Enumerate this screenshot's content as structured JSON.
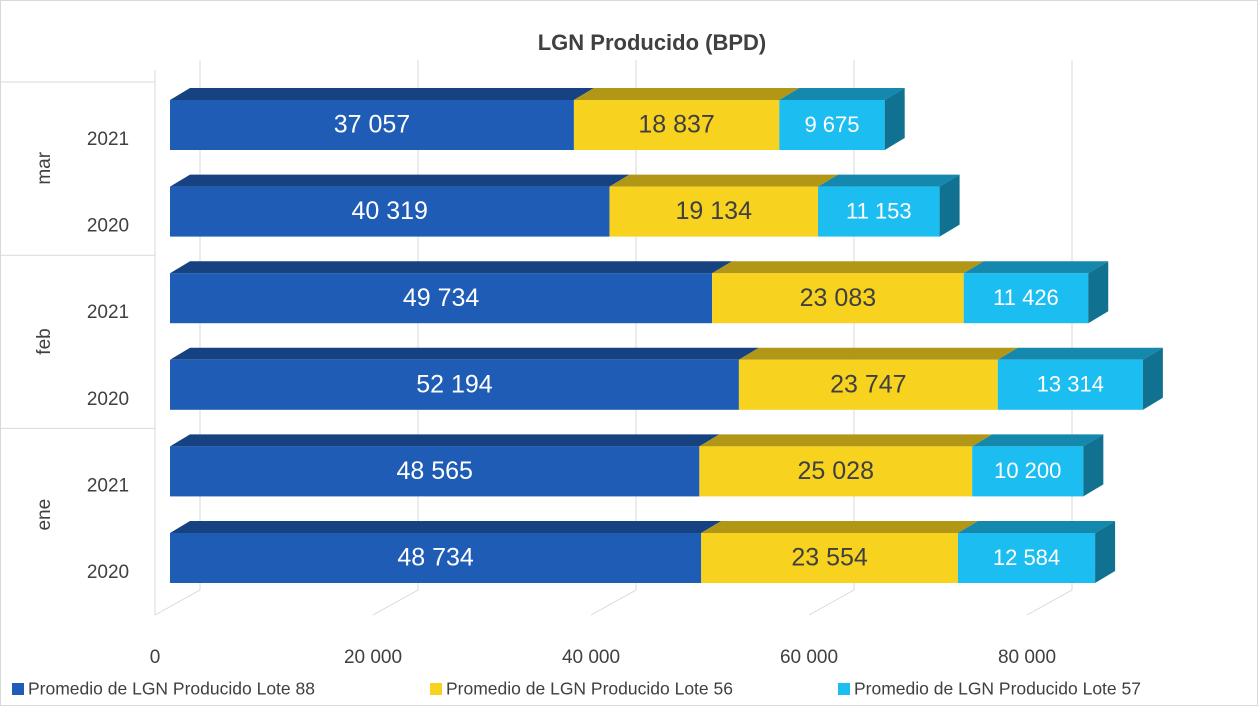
{
  "chart_data": {
    "type": "stacked-bar-3d",
    "title": "LGN Producido (BPD)",
    "groups": [
      {
        "name": "ene",
        "categories": [
          "2020",
          "2021"
        ]
      },
      {
        "name": "feb",
        "categories": [
          "2020",
          "2021"
        ]
      },
      {
        "name": "mar",
        "categories": [
          "2020",
          "2021"
        ]
      }
    ],
    "series": [
      {
        "name": "Promedio de LGN Producido Lote 88",
        "color": "#1f5cb5",
        "values": [
          48734,
          48565,
          52194,
          49734,
          40319,
          37057
        ],
        "value_labels": [
          "48 734",
          "48 565",
          "52 194",
          "49 734",
          "40 319",
          "37 057"
        ]
      },
      {
        "name": "Promedio de LGN Producido Lote 56",
        "color": "#f7d21f",
        "values": [
          23554,
          25028,
          23747,
          23083,
          19134,
          18837
        ],
        "value_labels": [
          "23 554",
          "25 028",
          "23 747",
          "23 083",
          "19 134",
          "18 837"
        ]
      },
      {
        "name": "Promedio de LGN Producido Lote 57",
        "color": "#1cbdf0",
        "values": [
          12584,
          10200,
          13314,
          11426,
          11153,
          9675
        ],
        "value_labels": [
          "12 584",
          "10 200",
          "13 314",
          "11 426",
          "11 153",
          "9 675"
        ]
      }
    ],
    "xlim": [
      0,
      90000
    ],
    "xticks": [
      0,
      {
        "value": 20000,
        "label": "20 000"
      },
      {
        "value": 40000,
        "label": "40 000"
      },
      {
        "value": 60000,
        "label": "60 000"
      },
      {
        "value": 80000,
        "label": "80 000"
      }
    ],
    "grid": true,
    "legend": "bottom"
  }
}
